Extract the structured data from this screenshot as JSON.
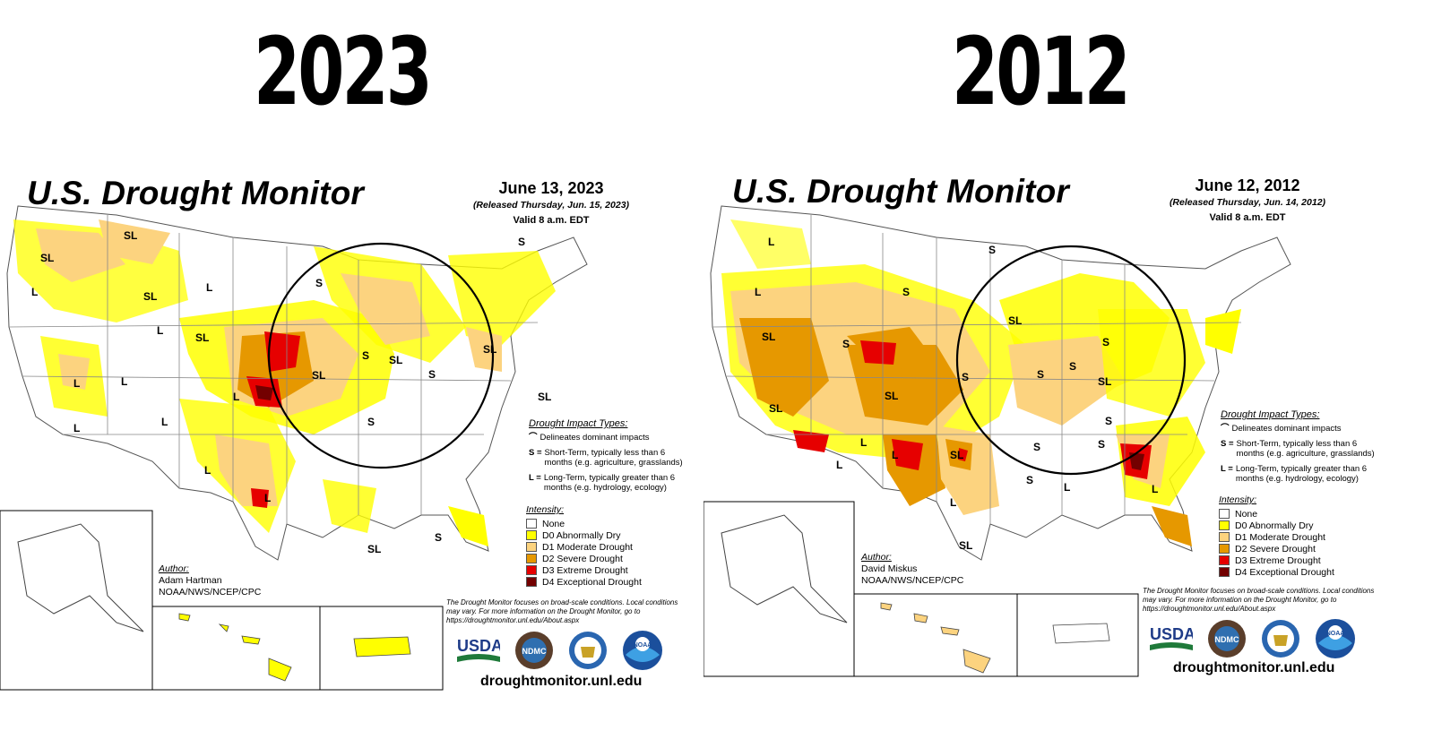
{
  "headings": {
    "left_year": "2023",
    "right_year": "2012"
  },
  "colors": {
    "none": "#ffffff",
    "d0": "#ffff00",
    "d1": "#fcd37f",
    "d2": "#e69800",
    "d3": "#e60000",
    "d4": "#730000"
  },
  "panels": [
    {
      "title": "U.S. Drought Monitor",
      "date": "June 13, 2023",
      "released": "(Released Thursday, Jun. 15, 2023)",
      "valid": "Valid 8 a.m. EDT",
      "impact_types_heading": "Drought Impact Types:",
      "impact_types": [
        {
          "key": "",
          "text": "Delineates dominant impacts"
        },
        {
          "key": "S =",
          "text": "Short-Term, typically less than 6 months (e.g. agriculture, grasslands)"
        },
        {
          "key": "L =",
          "text": "Long-Term, typically greater than 6 months (e.g. hydrology, ecology)"
        }
      ],
      "intensity_heading": "Intensity:",
      "intensity": [
        "None",
        "D0 Abnormally Dry",
        "D1 Moderate Drought",
        "D2 Severe Drought",
        "D3 Extreme Drought",
        "D4 Exceptional Drought"
      ],
      "author_heading": "Author:",
      "author_name": "Adam Hartman",
      "author_org": "NOAA/NWS/NCEP/CPC",
      "note": "The Drought Monitor focuses on broad-scale conditions. Local conditions may vary. For more information on the Drought Monitor, go to https://droughtmonitor.unl.edu/About.aspx",
      "logos": [
        "USDA",
        "NDMC",
        "DOC",
        "NOAA"
      ],
      "url": "droughtmonitor.unl.edu"
    },
    {
      "title": "U.S. Drought Monitor",
      "date": "June 12, 2012",
      "released": "(Released Thursday, Jun. 14, 2012)",
      "valid": "Valid 8 a.m. EDT",
      "impact_types_heading": "Drought Impact Types:",
      "impact_types": [
        {
          "key": "",
          "text": "Delineates dominant impacts"
        },
        {
          "key": "S =",
          "text": "Short-Term, typically less than 6 months (e.g. agriculture, grasslands)"
        },
        {
          "key": "L =",
          "text": "Long-Term, typically greater than 6 months (e.g. hydrology, ecology)"
        }
      ],
      "intensity_heading": "Intensity:",
      "intensity": [
        "None",
        "D0 Abnormally Dry",
        "D1 Moderate Drought",
        "D2 Severe Drought",
        "D3 Extreme Drought",
        "D4 Exceptional Drought"
      ],
      "author_heading": "Author:",
      "author_name": "David Miskus",
      "author_org": "NOAA/NWS/NCEP/CPC",
      "note": "The Drought Monitor focuses on broad-scale conditions. Local conditions may vary. For more information on the Drought Monitor, go to https://droughtmonitor.unl.edu/About.aspx",
      "logos": [
        "USDA",
        "NDMC",
        "DOC",
        "NOAA"
      ],
      "url": "droughtmonitor.unl.edu"
    }
  ],
  "map_labels": {
    "left": [
      "SL",
      "SL",
      "L",
      "SL",
      "L",
      "L",
      "SL",
      "L",
      "L",
      "S",
      "SL",
      "L",
      "S",
      "S",
      "SL",
      "S",
      "L",
      "L",
      "L",
      "L",
      "SL",
      "S",
      "S",
      "SL",
      "SL",
      "L",
      "S"
    ],
    "right": [
      "L",
      "L",
      "SL",
      "S",
      "S",
      "S",
      "SL",
      "L",
      "SL",
      "S",
      "S",
      "L",
      "SL",
      "L",
      "SL",
      "S",
      "S",
      "S",
      "S",
      "L",
      "L",
      "L",
      "S",
      "S",
      "SL",
      "L",
      "S",
      "SL"
    ]
  }
}
